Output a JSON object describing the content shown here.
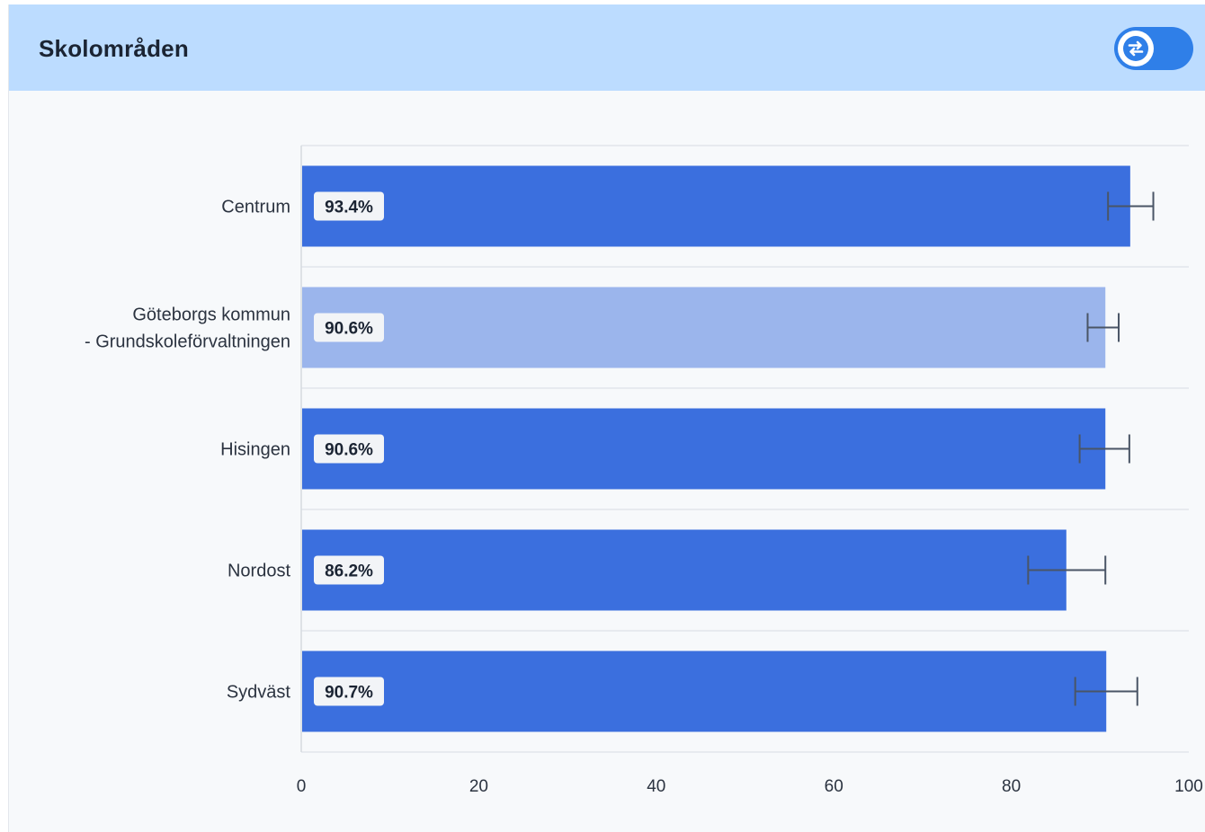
{
  "header": {
    "title": "Skolområden",
    "toggle_icon": "swap-arrows-icon"
  },
  "colors": {
    "bar_primary": "#3b6fde",
    "bar_highlight": "#9bb5ec",
    "header_bg": "#bcdcff",
    "toggle": "#2f7fe8",
    "error_bar": "#4a5566"
  },
  "chart_data": {
    "type": "bar",
    "orientation": "horizontal",
    "categories": [
      [
        "Centrum"
      ],
      [
        "Göteborgs kommun",
        "- Grundskoleförvaltningen"
      ],
      [
        "Hisingen"
      ],
      [
        "Nordost"
      ],
      [
        "Sydväst"
      ]
    ],
    "values": [
      93.4,
      90.6,
      90.6,
      86.2,
      90.7
    ],
    "value_labels": [
      "93.4%",
      "90.6%",
      "90.6%",
      "86.2%",
      "90.7%"
    ],
    "error_low": [
      90.9,
      88.6,
      87.7,
      81.9,
      87.2
    ],
    "error_high": [
      96.0,
      92.1,
      93.3,
      90.6,
      94.2
    ],
    "highlighted": [
      false,
      true,
      false,
      false,
      false
    ],
    "xlim": [
      0,
      100
    ],
    "xticks": [
      0,
      20,
      40,
      60,
      80,
      100
    ],
    "grid": true
  }
}
